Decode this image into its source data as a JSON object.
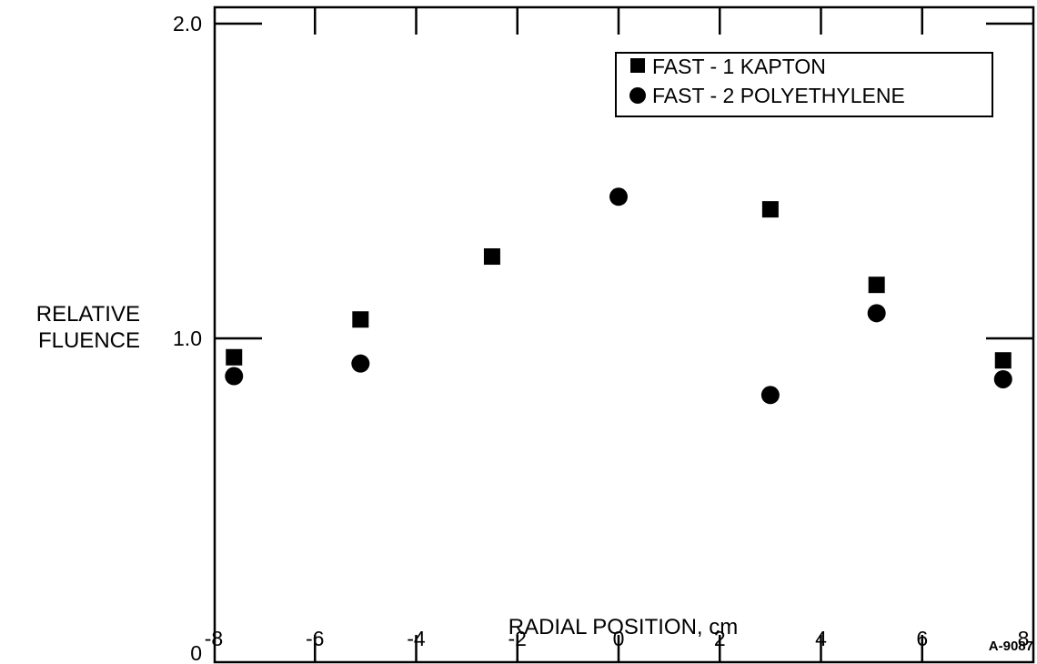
{
  "chart_data": {
    "type": "scatter",
    "xlabel": "RADIAL POSITION, cm",
    "ylabel_lines": [
      "RELATIVE",
      "FLUENCE"
    ],
    "xlim": [
      -8,
      8
    ],
    "ylim": [
      0,
      2.4
    ],
    "x_ticks": [
      -8,
      -6,
      -4,
      -2,
      0,
      2,
      4,
      6,
      8
    ],
    "x_tick_labels": [
      "-8",
      "-6",
      "-4",
      "-2",
      "0",
      "2",
      "4",
      "6",
      "8"
    ],
    "y_ticks": [
      0,
      1.0,
      2.0
    ],
    "y_tick_labels": [
      "0",
      "1.0",
      "2.0"
    ],
    "grid": false,
    "legend_position": "top-right",
    "series": [
      {
        "name": "FAST - 1 KAPTON",
        "marker": "square",
        "color": "#000000",
        "x": [
          -7.6,
          -5.1,
          -2.5,
          3.0,
          5.1,
          7.6
        ],
        "y": [
          0.94,
          1.06,
          1.26,
          1.41,
          1.17,
          0.93
        ]
      },
      {
        "name": "FAST - 2 POLYETHYLENE",
        "marker": "circle",
        "color": "#000000",
        "x": [
          -7.6,
          -5.1,
          0.0,
          3.0,
          5.1,
          7.6
        ],
        "y": [
          0.88,
          0.92,
          1.45,
          0.82,
          1.08,
          0.87
        ]
      }
    ]
  },
  "figure_id": "A-9087"
}
